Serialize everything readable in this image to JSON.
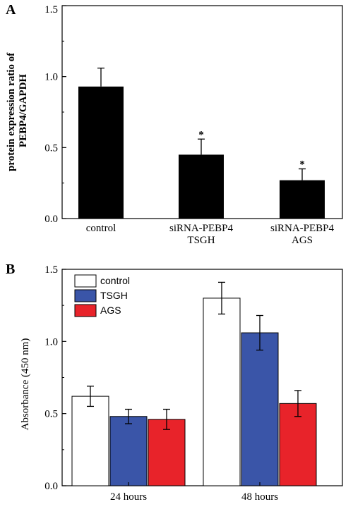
{
  "chart_data": [
    {
      "panel": "A",
      "type": "bar",
      "ylabel": [
        "protein expression ratio of",
        "PEBP4/GAPDH"
      ],
      "ylim": [
        0,
        1.5
      ],
      "yticks": [
        "0.0",
        "0.5",
        "1.0",
        "1.5"
      ],
      "categories": [
        [
          "control"
        ],
        [
          "siRNA-PEBP4",
          "TSGH"
        ],
        [
          "siRNA-PEBP4",
          "AGS"
        ]
      ],
      "values": [
        0.93,
        0.45,
        0.27
      ],
      "errors": [
        0.13,
        0.11,
        0.08
      ],
      "annotations": [
        "",
        "*",
        "*"
      ],
      "colors": [
        "#000000",
        "#000000",
        "#000000"
      ]
    },
    {
      "panel": "B",
      "type": "bar",
      "ylabel": "Absorbance (450 nm)",
      "ylim": [
        0,
        1.5
      ],
      "yticks": [
        "0.0",
        "0.5",
        "1.0",
        "1.5"
      ],
      "categories": [
        "24 hours",
        "48 hours"
      ],
      "series": [
        {
          "name": "control",
          "values": [
            0.62,
            1.3
          ],
          "errors": [
            0.07,
            0.11
          ],
          "color": "#ffffff"
        },
        {
          "name": "TSGH",
          "values": [
            0.48,
            1.06
          ],
          "errors": [
            0.05,
            0.12
          ],
          "color": "#3a55a8"
        },
        {
          "name": "AGS",
          "values": [
            0.46,
            0.57
          ],
          "errors": [
            0.07,
            0.09
          ],
          "color": "#e8232a"
        }
      ],
      "legend_position": "top-left"
    }
  ]
}
